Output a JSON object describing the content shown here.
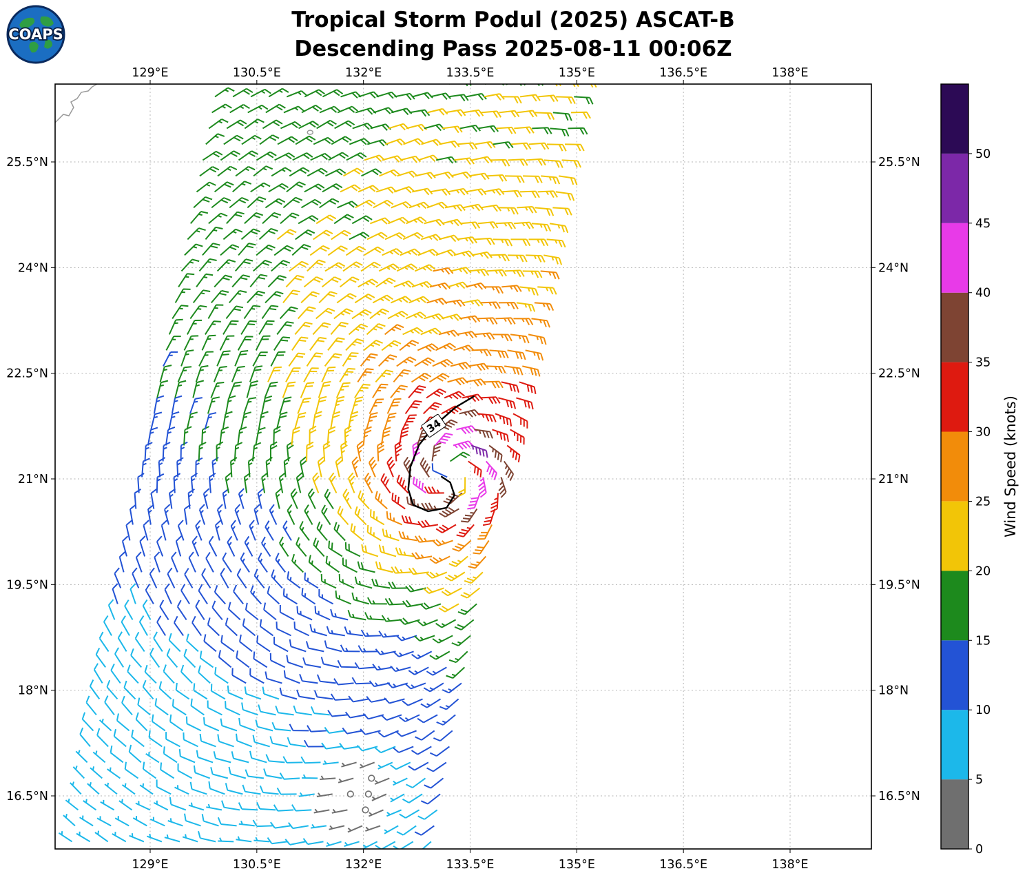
{
  "header": {
    "title_line1": "Tropical Storm Podul (2025) ASCAT-B",
    "title_line2": "Descending Pass 2025-08-11 00:06Z",
    "logo_text": "COAPS"
  },
  "chart_data": {
    "type": "wind_barb_map",
    "title": "Tropical Storm Podul (2025) ASCAT-B",
    "subtitle": "Descending Pass 2025-08-11 00:06Z",
    "grid": true,
    "x_axis": {
      "suffix": "°E",
      "ticks": [
        129,
        130.5,
        132,
        133.5,
        135,
        136.5,
        138
      ],
      "lon_min": 127.66,
      "lon_max": 139.14
    },
    "y_axis": {
      "suffix": "°N",
      "ticks": [
        16.5,
        18,
        19.5,
        21,
        22.5,
        24,
        25.5
      ],
      "lat_min": 15.76,
      "lat_max": 26.62
    },
    "colorbar": {
      "label": "Wind Speed (knots)",
      "units": "knots",
      "tick_values": [
        0,
        5,
        10,
        15,
        20,
        25,
        30,
        35,
        40,
        45,
        50
      ],
      "bin_edges": [
        0,
        5,
        10,
        15,
        20,
        25,
        30,
        35,
        40,
        45,
        50,
        55
      ],
      "colors": [
        "#6f6f6f",
        "#1cb8ea",
        "#2353d5",
        "#1d8a1d",
        "#f2c507",
        "#f28c0a",
        "#de1a10",
        "#7e4433",
        "#e83ae8",
        "#7c28a8",
        "#2c0a55"
      ]
    },
    "wind_field": {
      "type": "cyclonic_vortex",
      "center_lon": 133.25,
      "center_lat": 21.1,
      "vmax_kt": 46,
      "rmax_deg": 0.4,
      "decay_exp": 0.45,
      "inflow_deg": 20,
      "background_u_kt": -6,
      "background_v_kt": 1.5,
      "background_ramp_deg": 2.5,
      "calm_zone": {
        "lon": 132.05,
        "lat": 16.5,
        "radius_deg": 0.9
      }
    },
    "swath": {
      "lat_min": 15.85,
      "lat_max": 26.55,
      "lat_step": 0.225,
      "n_cols": 21,
      "lon_step": 0.2525,
      "lon_left_at_lat16": 127.93,
      "lon_shift_per_deg_lat": 0.19
    },
    "isotach_34": {
      "label": "34",
      "label_lon": 132.99,
      "label_lat": 21.75,
      "label_rotation_deg": -35,
      "points": [
        [
          133.55,
          22.17
        ],
        [
          133.3,
          22.02
        ],
        [
          133.23,
          21.96
        ],
        [
          132.99,
          21.75
        ],
        [
          132.78,
          21.48
        ],
        [
          132.66,
          21.17
        ],
        [
          132.63,
          20.85
        ],
        [
          132.7,
          20.63
        ],
        [
          132.91,
          20.54
        ],
        [
          133.17,
          20.59
        ],
        [
          133.28,
          20.77
        ],
        [
          133.22,
          20.95
        ],
        [
          133.1,
          21.03
        ]
      ]
    },
    "coastlines": {
      "okinawa": [
        [
          127.663,
          26.058
        ],
        [
          127.779,
          26.175
        ],
        [
          127.857,
          26.155
        ],
        [
          127.924,
          26.273
        ],
        [
          127.886,
          26.351
        ],
        [
          127.973,
          26.4
        ],
        [
          128.031,
          26.488
        ],
        [
          128.128,
          26.508
        ],
        [
          128.186,
          26.567
        ],
        [
          128.254,
          26.606
        ]
      ],
      "islet": {
        "lon": 131.25,
        "lat": 25.92
      }
    }
  }
}
